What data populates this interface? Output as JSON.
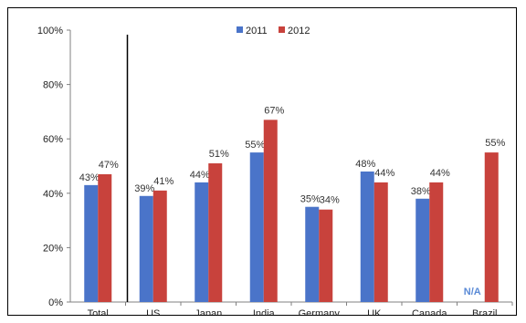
{
  "chart_data": {
    "type": "bar",
    "categories": [
      "Total",
      "US",
      "Japan",
      "India",
      "Germany",
      "UK",
      "Canada",
      "Brazil"
    ],
    "series": [
      {
        "name": "2011",
        "color": "#4a74c9",
        "values": [
          43,
          39,
          44,
          55,
          35,
          48,
          38,
          null
        ]
      },
      {
        "name": "2012",
        "color": "#c8423c",
        "values": [
          47,
          41,
          51,
          67,
          34,
          44,
          44,
          55
        ]
      }
    ],
    "data_labels": {
      "2011": [
        "43%",
        "39%",
        "44%",
        "55%",
        "35%",
        "48%",
        "38%",
        "N/A"
      ],
      "2012": [
        "47%",
        "41%",
        "51%",
        "67%",
        "34%",
        "44%",
        "44%",
        "55%"
      ]
    },
    "ylim": [
      0,
      100
    ],
    "yticks": [
      "0%",
      "20%",
      "40%",
      "60%",
      "80%",
      "100%"
    ],
    "legend_position": "top-center",
    "separator_after_category": "Total",
    "grid": false,
    "na_color": "#5a8ad6"
  }
}
